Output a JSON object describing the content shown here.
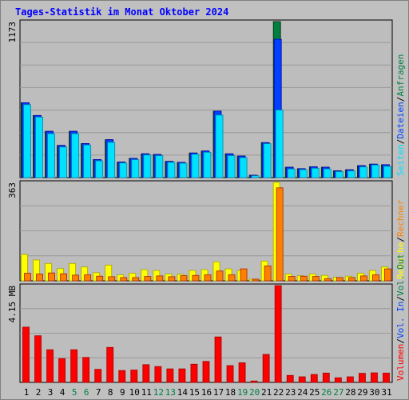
{
  "title": "Tages-Statistik im Monat Oktober 2024",
  "colors": {
    "background": "#c0c0c0",
    "plot": "#bdbdbd",
    "grid": "#9a9a9a",
    "anfragen": "#008040",
    "dateien": "#0040ff",
    "seiten": "#00e0ff",
    "besuche": "#ffff00",
    "rechner": "#ff8000",
    "volumen": "#ff0000",
    "weekend_label": "#008040",
    "weekday_label": "#000000"
  },
  "chart_data": [
    {
      "type": "bar",
      "panel": "top",
      "ymax_label": "1173",
      "ylim": [
        0,
        1173
      ],
      "legend": [
        {
          "label": "Seiten",
          "color": "#00e0ff"
        },
        {
          "label": "/",
          "color": "#000000"
        },
        {
          "label": "Dateien",
          "color": "#0040ff"
        },
        {
          "label": "/",
          "color": "#000000"
        },
        {
          "label": "Anfragen",
          "color": "#008040"
        }
      ],
      "series": [
        {
          "name": "Anfragen",
          "values": [
            563,
            467,
            348,
            242,
            348,
            256,
            136,
            285,
            117,
            145,
            179,
            174,
            122,
            115,
            185,
            200,
            500,
            179,
            162,
            18,
            263,
            1173,
            78,
            67,
            81,
            78,
            51,
            59,
            90,
            101,
            97
          ]
        },
        {
          "name": "Dateien",
          "values": [
            563,
            467,
            348,
            242,
            348,
            256,
            136,
            285,
            117,
            145,
            179,
            174,
            122,
            115,
            185,
            200,
            500,
            179,
            162,
            18,
            263,
            1040,
            78,
            67,
            81,
            78,
            51,
            59,
            90,
            101,
            97
          ]
        },
        {
          "name": "Seiten",
          "values": [
            548,
            455,
            330,
            230,
            330,
            245,
            126,
            265,
            110,
            135,
            170,
            165,
            115,
            108,
            175,
            190,
            470,
            165,
            150,
            14,
            255,
            508,
            65,
            60,
            70,
            65,
            45,
            50,
            80,
            95,
            85
          ]
        }
      ]
    },
    {
      "type": "bar",
      "panel": "middle",
      "ymax_label": "363",
      "ylim": [
        0,
        363
      ],
      "legend": [
        {
          "label": "Besuche",
          "color": "#ffff00"
        },
        {
          "label": "/",
          "color": "#000000"
        },
        {
          "label": "Rechner",
          "color": "#ff8000"
        }
      ],
      "series": [
        {
          "name": "Besuche",
          "values": [
            97,
            77,
            64,
            45,
            64,
            51,
            30,
            58,
            22,
            28,
            41,
            38,
            25,
            24,
            38,
            41,
            70,
            44,
            38,
            6,
            73,
            363,
            25,
            19,
            25,
            20,
            13,
            17,
            28,
            38,
            51
          ]
        },
        {
          "name": "Rechner",
          "values": [
            28,
            25,
            29,
            26,
            21,
            22,
            17,
            15,
            12,
            12,
            16,
            18,
            15,
            19,
            20,
            22,
            36,
            22,
            44,
            6,
            55,
            343,
            16,
            17,
            16,
            8,
            12,
            12,
            18,
            22,
            44
          ]
        }
      ]
    },
    {
      "type": "bar",
      "panel": "bottom",
      "ymax_label": "4.15 MB",
      "ylim": [
        0,
        4.15
      ],
      "legend": [
        {
          "label": "Volumen",
          "color": "#ff0000"
        },
        {
          "label": "/",
          "color": "#000000"
        },
        {
          "label": "Vol. In",
          "color": "#0040ff"
        },
        {
          "label": "/",
          "color": "#000000"
        },
        {
          "label": "Vol. Out",
          "color": "#008040"
        }
      ],
      "series": [
        {
          "name": "Volumen",
          "values": [
            2.37,
            2.0,
            1.4,
            1.02,
            1.4,
            1.07,
            0.56,
            1.5,
            0.51,
            0.53,
            0.76,
            0.68,
            0.58,
            0.58,
            0.78,
            0.9,
            1.95,
            0.72,
            0.84,
            0.06,
            1.2,
            4.15,
            0.3,
            0.24,
            0.34,
            0.4,
            0.2,
            0.24,
            0.39,
            0.41,
            0.4
          ]
        }
      ]
    }
  ],
  "days": [
    "1",
    "2",
    "3",
    "4",
    "5",
    "6",
    "7",
    "8",
    "9",
    "10",
    "11",
    "12",
    "13",
    "14",
    "15",
    "16",
    "17",
    "18",
    "19",
    "20",
    "21",
    "22",
    "23",
    "24",
    "25",
    "26",
    "27",
    "28",
    "29",
    "30",
    "31"
  ],
  "weekend_days": [
    5,
    6,
    12,
    13,
    19,
    20,
    26,
    27
  ]
}
